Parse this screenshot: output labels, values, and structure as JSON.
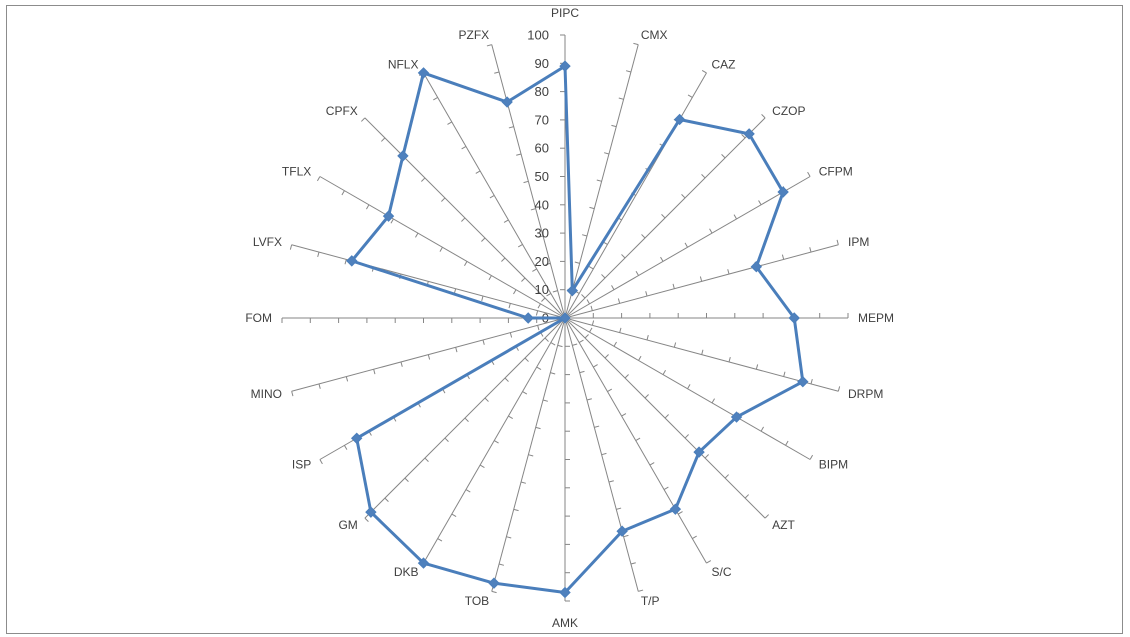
{
  "chart_data": {
    "type": "radar",
    "title": "",
    "categories": [
      "PIPC",
      "CMX",
      "CAZ",
      "CZOP",
      "CFPM",
      "IPM",
      "MEPM",
      "DRPM",
      "BIPM",
      "AZT",
      "S/C",
      "T/P",
      "AMK",
      "TOB",
      "DKB",
      "GM",
      "ISP",
      "MINO",
      "FOM",
      "LVFX",
      "TFLX",
      "CPFX",
      "NFLX",
      "PZFX"
    ],
    "values": [
      89,
      10,
      81,
      92,
      89,
      70,
      81,
      87,
      70,
      67,
      78,
      78,
      97,
      97,
      100,
      97,
      85,
      0,
      13,
      78,
      72,
      81,
      100,
      79
    ],
    "r_range": [
      0,
      100
    ],
    "r_ticks": [
      0,
      10,
      20,
      30,
      40,
      50,
      60,
      70,
      80,
      90,
      100
    ],
    "gridlines": false,
    "legend": "none",
    "marker": "diamond"
  },
  "colors": {
    "series": "#4A7EBB",
    "marker": "#4F81BD",
    "axis": "#868686",
    "frame": "#8C8C8C",
    "text": "#404040"
  }
}
